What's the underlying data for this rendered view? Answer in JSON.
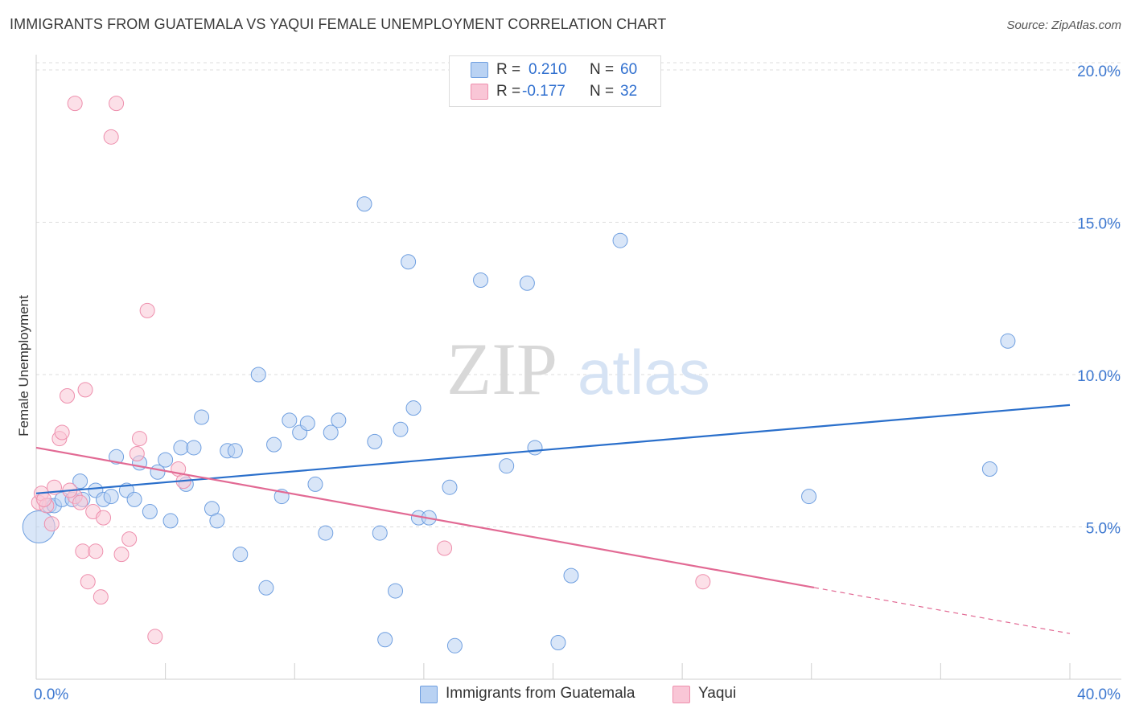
{
  "title": "IMMIGRANTS FROM GUATEMALA VS YAQUI FEMALE UNEMPLOYMENT CORRELATION CHART",
  "source": "Source: ZipAtlas.com",
  "watermark": {
    "zip": "ZIP",
    "atlas": "atlas"
  },
  "legend": {
    "r_label": "R =",
    "n_label": "N =",
    "rows": [
      {
        "r": "0.210",
        "n": "60",
        "fill": "#b9d2f3",
        "stroke": "#6f9fe0"
      },
      {
        "r": "-0.177",
        "n": "32",
        "fill": "#f9c6d6",
        "stroke": "#ee8fad"
      }
    ]
  },
  "chart_data": {
    "type": "scatter",
    "ylabel": "Female Unemployment",
    "xlim": [
      0,
      40
    ],
    "ylim": [
      0,
      20.5
    ],
    "x_tick_labels": [
      "0.0%",
      "40.0%"
    ],
    "y_ticks": [
      5,
      10,
      15,
      20
    ],
    "y_tick_labels": [
      "5.0%",
      "10.0%",
      "15.0%",
      "20.0%"
    ],
    "grid": "horizontal dashed",
    "series": [
      {
        "name": "Immigrants from Guatemala",
        "fill": "#b9d2f3",
        "stroke": "#6f9fe0",
        "line_color": "#2a6fcb",
        "trend": {
          "x": [
            0,
            40
          ],
          "y": [
            6.1,
            9.0
          ],
          "solid_to": 40
        },
        "points": [
          [
            0.1,
            5.0
          ],
          [
            0.5,
            5.7
          ],
          [
            0.7,
            5.7
          ],
          [
            1.0,
            5.9
          ],
          [
            1.4,
            5.9
          ],
          [
            1.7,
            6.5
          ],
          [
            1.8,
            5.9
          ],
          [
            2.3,
            6.2
          ],
          [
            2.6,
            5.9
          ],
          [
            2.9,
            6.0
          ],
          [
            3.1,
            7.3
          ],
          [
            3.5,
            6.2
          ],
          [
            3.8,
            5.9
          ],
          [
            4.0,
            7.1
          ],
          [
            4.4,
            5.5
          ],
          [
            4.7,
            6.8
          ],
          [
            5.0,
            7.2
          ],
          [
            5.2,
            5.2
          ],
          [
            5.6,
            7.6
          ],
          [
            5.8,
            6.4
          ],
          [
            6.1,
            7.6
          ],
          [
            6.4,
            8.6
          ],
          [
            6.8,
            5.6
          ],
          [
            7.0,
            5.2
          ],
          [
            7.4,
            7.5
          ],
          [
            7.7,
            7.5
          ],
          [
            7.9,
            4.1
          ],
          [
            8.6,
            10.0
          ],
          [
            8.9,
            3.0
          ],
          [
            9.2,
            7.7
          ],
          [
            9.5,
            6.0
          ],
          [
            9.8,
            8.5
          ],
          [
            10.2,
            8.1
          ],
          [
            10.5,
            8.4
          ],
          [
            10.8,
            6.4
          ],
          [
            11.2,
            4.8
          ],
          [
            11.4,
            8.1
          ],
          [
            11.7,
            8.5
          ],
          [
            12.7,
            15.6
          ],
          [
            13.1,
            7.8
          ],
          [
            13.3,
            4.8
          ],
          [
            13.5,
            1.3
          ],
          [
            13.9,
            2.9
          ],
          [
            14.1,
            8.2
          ],
          [
            14.4,
            13.7
          ],
          [
            14.6,
            8.9
          ],
          [
            14.8,
            5.3
          ],
          [
            15.2,
            5.3
          ],
          [
            16.0,
            6.3
          ],
          [
            16.2,
            1.1
          ],
          [
            17.2,
            13.1
          ],
          [
            18.2,
            7.0
          ],
          [
            19.0,
            13.0
          ],
          [
            19.3,
            7.6
          ],
          [
            20.2,
            1.2
          ],
          [
            20.7,
            3.4
          ],
          [
            22.6,
            14.4
          ],
          [
            29.9,
            6.0
          ],
          [
            36.9,
            6.9
          ],
          [
            37.6,
            11.1
          ]
        ]
      },
      {
        "name": "Yaqui",
        "fill": "#f9c6d6",
        "stroke": "#ee8fad",
        "line_color": "#e26a94",
        "trend": {
          "x": [
            0,
            40
          ],
          "y": [
            7.6,
            1.5
          ],
          "solid_to": 30.1
        },
        "points": [
          [
            0.1,
            5.8
          ],
          [
            0.2,
            6.1
          ],
          [
            0.4,
            5.7
          ],
          [
            0.6,
            5.1
          ],
          [
            0.7,
            6.3
          ],
          [
            0.9,
            7.9
          ],
          [
            1.0,
            8.1
          ],
          [
            1.2,
            9.3
          ],
          [
            1.5,
            6.0
          ],
          [
            1.7,
            5.8
          ],
          [
            1.8,
            4.2
          ],
          [
            1.9,
            9.5
          ],
          [
            2.0,
            3.2
          ],
          [
            2.2,
            5.5
          ],
          [
            2.3,
            4.2
          ],
          [
            2.5,
            2.7
          ],
          [
            2.6,
            5.3
          ],
          [
            1.5,
            18.9
          ],
          [
            2.9,
            17.8
          ],
          [
            3.1,
            18.9
          ],
          [
            3.3,
            4.1
          ],
          [
            3.6,
            4.6
          ],
          [
            3.9,
            7.4
          ],
          [
            4.0,
            7.9
          ],
          [
            4.3,
            12.1
          ],
          [
            4.6,
            1.4
          ],
          [
            5.5,
            6.9
          ],
          [
            5.7,
            6.5
          ],
          [
            15.8,
            4.3
          ],
          [
            25.8,
            3.2
          ],
          [
            0.3,
            5.9
          ],
          [
            1.3,
            6.2
          ]
        ]
      }
    ]
  },
  "bottom_legend": [
    {
      "label": "Immigrants from Guatemala",
      "fill": "#b9d2f3",
      "stroke": "#6f9fe0"
    },
    {
      "label": "Yaqui",
      "fill": "#f9c6d6",
      "stroke": "#ee8fad"
    }
  ]
}
